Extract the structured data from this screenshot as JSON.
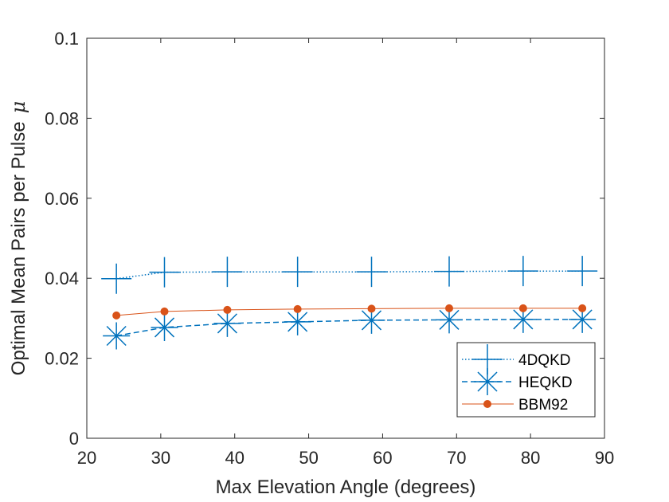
{
  "chart_data": {
    "type": "line",
    "title": "",
    "xlabel": "Max Elevation Angle (degrees)",
    "ylabel_text": "Optimal Mean Pairs per Pulse",
    "ylabel_symbol": "μ",
    "xlim": [
      20,
      90
    ],
    "ylim": [
      0,
      0.1
    ],
    "x_ticks": [
      20,
      30,
      40,
      50,
      60,
      70,
      80,
      90
    ],
    "y_ticks": [
      0,
      0.02,
      0.04,
      0.06,
      0.08,
      0.1
    ],
    "x_tick_labels": [
      "20",
      "30",
      "40",
      "50",
      "60",
      "70",
      "80",
      "90"
    ],
    "y_tick_labels": [
      "0",
      "0.02",
      "0.04",
      "0.06",
      "0.08",
      "0.1"
    ],
    "grid": false,
    "legend_position": "bottom-right",
    "x": [
      24,
      30.5,
      39,
      48.5,
      58.5,
      69,
      79,
      87
    ],
    "series": [
      {
        "name": "4DQKD",
        "color": "#0072BD",
        "line_style": "dotted",
        "marker": "plus",
        "values": [
          0.0399,
          0.0415,
          0.0416,
          0.0416,
          0.0416,
          0.0417,
          0.0418,
          0.0418
        ]
      },
      {
        "name": "HEQKD",
        "color": "#0072BD",
        "line_style": "dashed",
        "marker": "asterisk",
        "values": [
          0.0256,
          0.0277,
          0.0287,
          0.0291,
          0.0295,
          0.0296,
          0.0297,
          0.0297
        ]
      },
      {
        "name": "BBM92",
        "color": "#D95319",
        "line_style": "solid",
        "marker": "dot",
        "values": [
          0.0307,
          0.0317,
          0.0321,
          0.0323,
          0.0324,
          0.0325,
          0.0325,
          0.0325
        ]
      }
    ]
  }
}
